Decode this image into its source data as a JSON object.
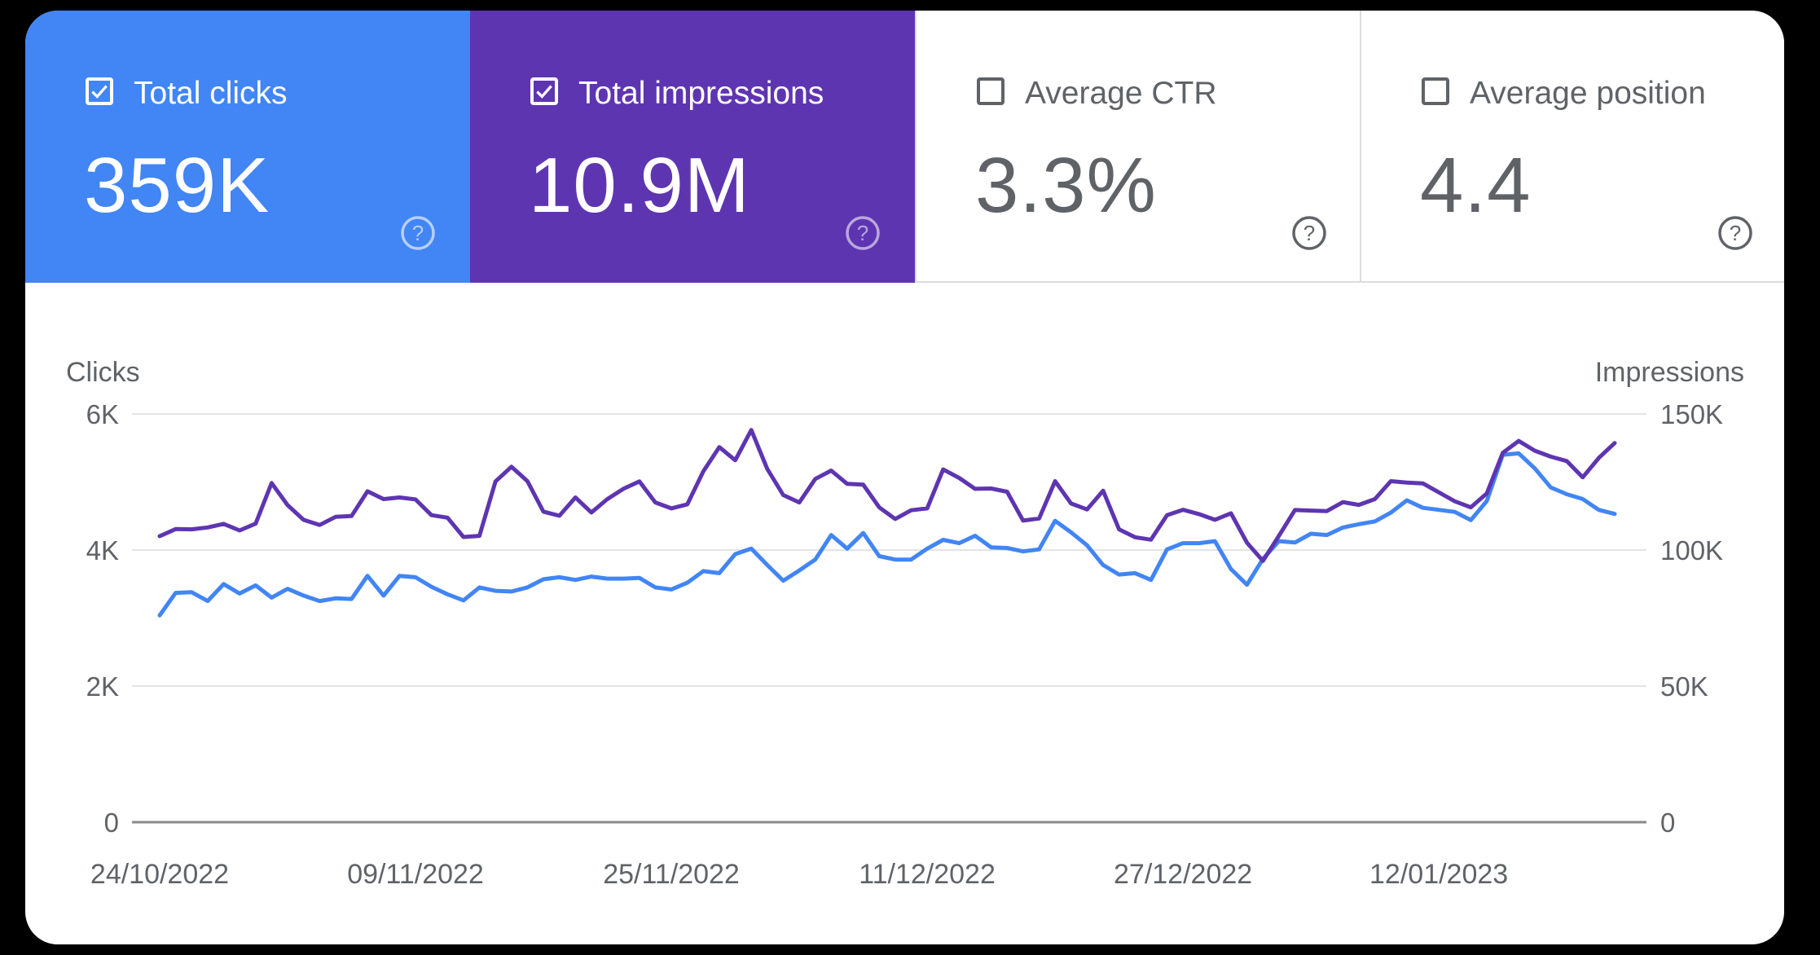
{
  "metrics": [
    {
      "label": "Total clicks",
      "value": "359K",
      "checked": true,
      "color": "#4285f4"
    },
    {
      "label": "Total impressions",
      "value": "10.9M",
      "checked": true,
      "color": "#5e35b1"
    },
    {
      "label": "Average CTR",
      "value": "3.3%",
      "checked": false,
      "color": "#ffffff"
    },
    {
      "label": "Average position",
      "value": "4.4",
      "checked": false,
      "color": "#ffffff"
    }
  ],
  "chart_data": {
    "type": "line",
    "left_axis_title": "Clicks",
    "right_axis_title": "Impressions",
    "left_ticks": [
      "6K",
      "4K",
      "2K",
      "0"
    ],
    "right_ticks": [
      "150K",
      "100K",
      "50K",
      "0"
    ],
    "ylim_left": [
      0,
      6000
    ],
    "ylim_right": [
      0,
      150000
    ],
    "x_tick_labels": [
      "24/10/2022",
      "09/11/2022",
      "25/11/2022",
      "11/12/2022",
      "27/12/2022",
      "12/01/2023"
    ],
    "grid": true,
    "series": [
      {
        "name": "Total clicks",
        "axis": "left",
        "color": "#4285f4",
        "values": [
          3040,
          3370,
          3380,
          3250,
          3500,
          3360,
          3480,
          3300,
          3430,
          3330,
          3250,
          3290,
          3280,
          3620,
          3330,
          3620,
          3600,
          3460,
          3350,
          3260,
          3450,
          3400,
          3390,
          3450,
          3570,
          3600,
          3560,
          3610,
          3580,
          3580,
          3590,
          3450,
          3420,
          3520,
          3690,
          3660,
          3940,
          4020,
          3780,
          3550,
          3700,
          3860,
          4220,
          4020,
          4250,
          3910,
          3860,
          3860,
          4020,
          4150,
          4100,
          4210,
          4040,
          4030,
          3980,
          4010,
          4430,
          4260,
          4070,
          3780,
          3640,
          3660,
          3560,
          4010,
          4100,
          4100,
          4130,
          3720,
          3490,
          3870,
          4130,
          4110,
          4240,
          4220,
          4330,
          4380,
          4420,
          4550,
          4730,
          4620,
          4590,
          4560,
          4440,
          4720,
          5400,
          5420,
          5200,
          4920,
          4820,
          4750,
          4590,
          4530
        ]
      },
      {
        "name": "Total impressions",
        "axis": "right",
        "color": "#5e35b1",
        "values": [
          105100,
          107700,
          107600,
          108300,
          109600,
          107200,
          109700,
          124600,
          116500,
          111100,
          109200,
          112200,
          112500,
          121600,
          118700,
          119300,
          118600,
          112800,
          111900,
          104800,
          105200,
          125200,
          130600,
          125300,
          114100,
          112600,
          119300,
          113800,
          118700,
          122500,
          125200,
          117500,
          115300,
          116800,
          128900,
          137800,
          133000,
          144100,
          129800,
          120200,
          117500,
          126100,
          129200,
          124300,
          124000,
          115700,
          111400,
          114600,
          115300,
          129600,
          126500,
          122500,
          122600,
          121400,
          110800,
          111600,
          125300,
          117100,
          114900,
          121800,
          107600,
          104700,
          103800,
          112800,
          114800,
          113200,
          111100,
          113500,
          102700,
          96000,
          105200,
          114700,
          114500,
          114300,
          117600,
          116600,
          118700,
          125300,
          124800,
          124500,
          121200,
          117900,
          115700,
          120800,
          135700,
          140100,
          136500,
          134300,
          132700,
          126700,
          133800,
          139300
        ]
      }
    ]
  }
}
